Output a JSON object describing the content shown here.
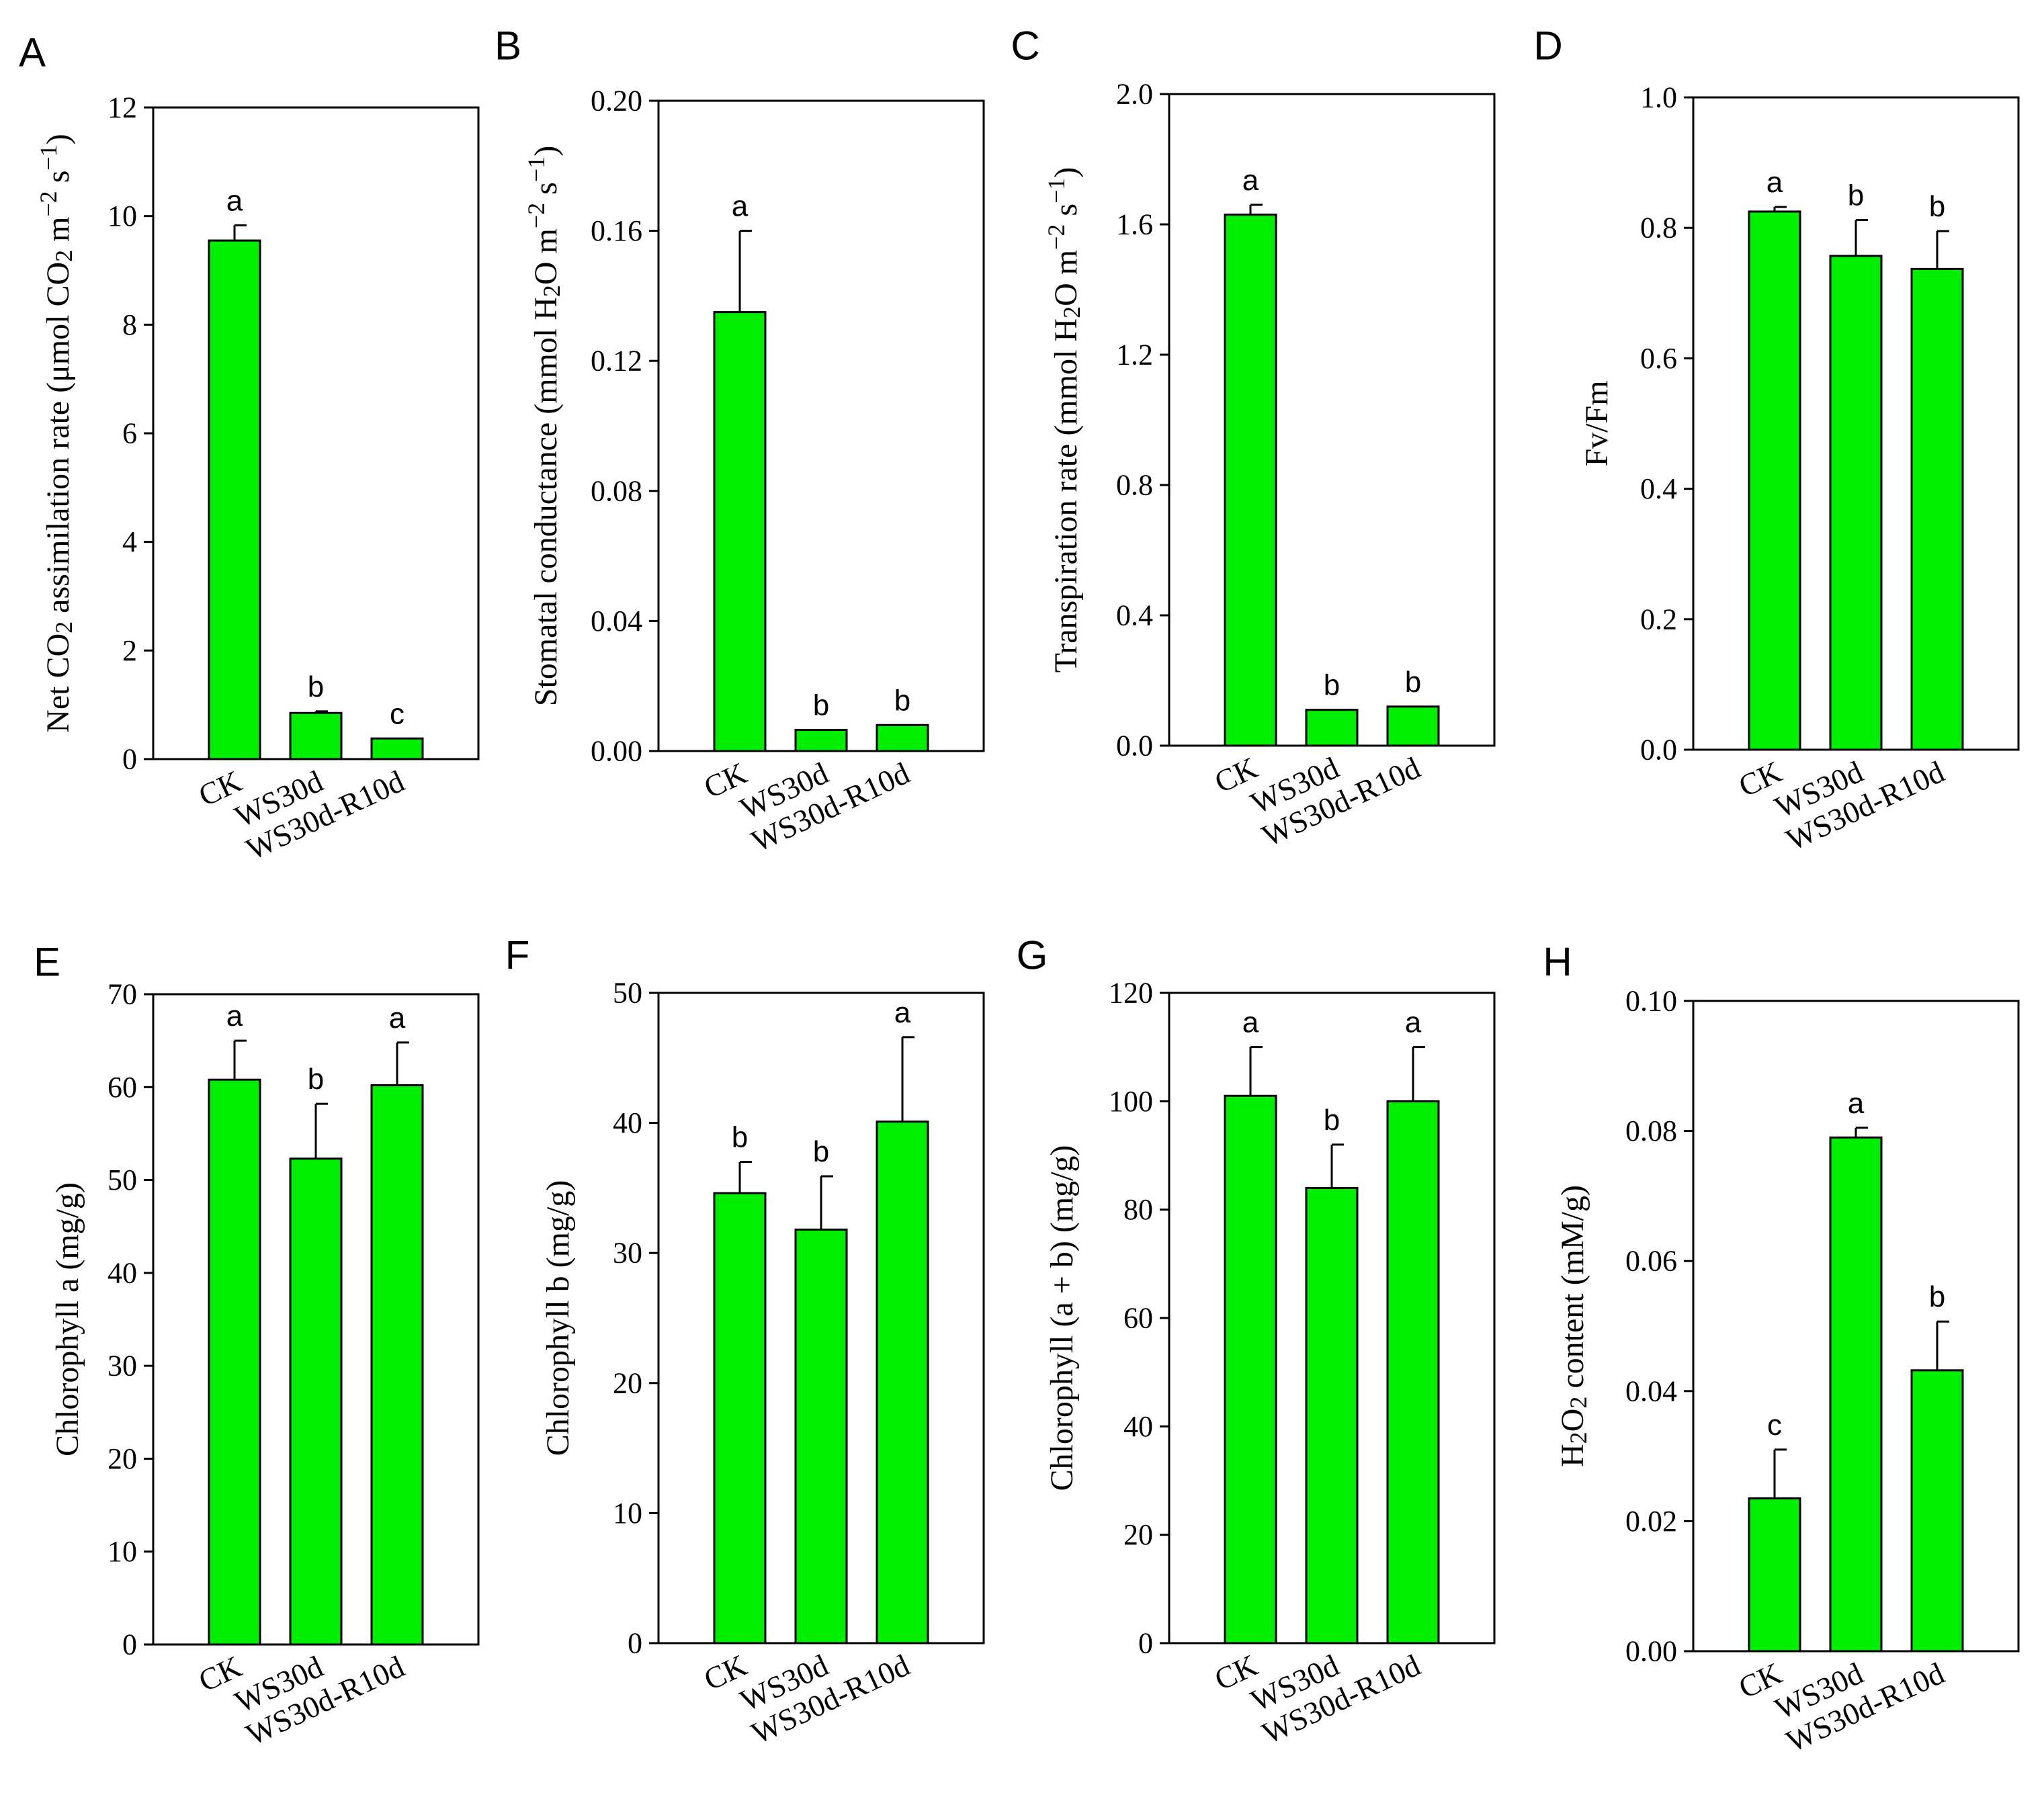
{
  "colors": {
    "bar": "#00ee00",
    "stroke": "#000000"
  },
  "chart_data": [
    {
      "type": "bar",
      "panel": "A",
      "ylabel_parts": [
        {
          "t": "Net CO"
        },
        {
          "t": "2",
          "sub": true
        },
        {
          "t": " assimilation rate (μmol CO"
        },
        {
          "t": "2",
          "sub": true
        },
        {
          "t": " m"
        },
        {
          "t": "−2",
          "sup": true
        },
        {
          "t": " s"
        },
        {
          "t": "−1",
          "sup": true
        },
        {
          "t": ")"
        }
      ],
      "categories": [
        "CK",
        "WS30d",
        "WS30d-R10d"
      ],
      "values": [
        9.55,
        0.85,
        0.38
      ],
      "errors": [
        0.28,
        0.03,
        0.0
      ],
      "letters": [
        "a",
        "b",
        "c"
      ],
      "ylim": [
        0,
        12
      ],
      "yticks": [
        "0",
        "2",
        "4",
        "6",
        "8",
        "10",
        "12"
      ]
    },
    {
      "type": "bar",
      "panel": "B",
      "ylabel_parts": [
        {
          "t": "Stomatal conductance (mmol H"
        },
        {
          "t": "2",
          "sub": true
        },
        {
          "t": "O m"
        },
        {
          "t": "−2",
          "sup": true
        },
        {
          "t": " s"
        },
        {
          "t": "−1",
          "sup": true
        },
        {
          "t": ")"
        }
      ],
      "categories": [
        "CK",
        "WS30d",
        "WS30d-R10d"
      ],
      "values": [
        0.135,
        0.0065,
        0.008
      ],
      "errors": [
        0.025,
        0.0,
        0.0
      ],
      "letters": [
        "a",
        "b",
        "b"
      ],
      "ylim": [
        0,
        0.2
      ],
      "yticks": [
        "0.00",
        "0.04",
        "0.08",
        "0.12",
        "0.16",
        "0.20"
      ]
    },
    {
      "type": "bar",
      "panel": "C",
      "ylabel_parts": [
        {
          "t": "Transpiration rate (mmol H"
        },
        {
          "t": "2",
          "sub": true
        },
        {
          "t": "O m"
        },
        {
          "t": "−2",
          "sup": true
        },
        {
          "t": " s"
        },
        {
          "t": "−1",
          "sup": true
        },
        {
          "t": ")"
        }
      ],
      "categories": [
        "CK",
        "WS30d",
        "WS30d-R10d"
      ],
      "values": [
        1.63,
        0.11,
        0.12
      ],
      "errors": [
        0.03,
        0.0,
        0.0
      ],
      "letters": [
        "a",
        "b",
        "b"
      ],
      "ylim": [
        0,
        2.0
      ],
      "yticks": [
        "0.0",
        "0.4",
        "0.8",
        "1.2",
        "1.6",
        "2.0"
      ]
    },
    {
      "type": "bar",
      "panel": "D",
      "ylabel_parts": [
        {
          "t": "Fv/Fm"
        }
      ],
      "categories": [
        "CK",
        "WS30d",
        "WS30d-R10d"
      ],
      "values": [
        0.825,
        0.757,
        0.737
      ],
      "errors": [
        0.007,
        0.055,
        0.058
      ],
      "letters": [
        "a",
        "b",
        "b"
      ],
      "ylim": [
        0,
        1.0
      ],
      "yticks": [
        "0.0",
        "0.2",
        "0.4",
        "0.6",
        "0.8",
        "1.0"
      ]
    },
    {
      "type": "bar",
      "panel": "E",
      "ylabel_parts": [
        {
          "t": "Chlorophyll a (mg/g)"
        }
      ],
      "categories": [
        "CK",
        "WS30d",
        "WS30d-R10d"
      ],
      "values": [
        60.8,
        52.3,
        60.2
      ],
      "errors": [
        4.2,
        5.9,
        4.6
      ],
      "letters": [
        "a",
        "b",
        "a"
      ],
      "ylim": [
        0,
        70
      ],
      "yticks": [
        "0",
        "10",
        "20",
        "30",
        "40",
        "50",
        "60",
        "70"
      ]
    },
    {
      "type": "bar",
      "panel": "F",
      "ylabel_parts": [
        {
          "t": "Chlorophyll b (mg/g)"
        }
      ],
      "categories": [
        "CK",
        "WS30d",
        "WS30d-R10d"
      ],
      "values": [
        34.6,
        31.8,
        40.1
      ],
      "errors": [
        2.4,
        4.1,
        6.5
      ],
      "letters": [
        "b",
        "b",
        "a"
      ],
      "ylim": [
        0,
        50
      ],
      "yticks": [
        "0",
        "10",
        "20",
        "30",
        "40",
        "50"
      ]
    },
    {
      "type": "bar",
      "panel": "G",
      "ylabel_parts": [
        {
          "t": "Chlorophyll (a + b) (mg/g)"
        }
      ],
      "categories": [
        "CK",
        "WS30d",
        "WS30d-R10d"
      ],
      "values": [
        101,
        84,
        100
      ],
      "errors": [
        9,
        8,
        10
      ],
      "letters": [
        "a",
        "b",
        "a"
      ],
      "ylim": [
        0,
        120
      ],
      "yticks": [
        "0",
        "20",
        "40",
        "60",
        "80",
        "100",
        "120"
      ]
    },
    {
      "type": "bar",
      "panel": "H",
      "ylabel_parts": [
        {
          "t": "H"
        },
        {
          "t": "2",
          "sub": true
        },
        {
          "t": "O"
        },
        {
          "t": "2",
          "sub": true
        },
        {
          "t": " content (mM/g)"
        }
      ],
      "categories": [
        "CK",
        "WS30d",
        "WS30d-R10d"
      ],
      "values": [
        0.0235,
        0.079,
        0.0432
      ],
      "errors": [
        0.0075,
        0.0015,
        0.0075
      ],
      "letters": [
        "c",
        "a",
        "b"
      ],
      "ylim": [
        0,
        0.1
      ],
      "yticks": [
        "0.00",
        "0.02",
        "0.04",
        "0.06",
        "0.08",
        "0.10"
      ]
    }
  ]
}
